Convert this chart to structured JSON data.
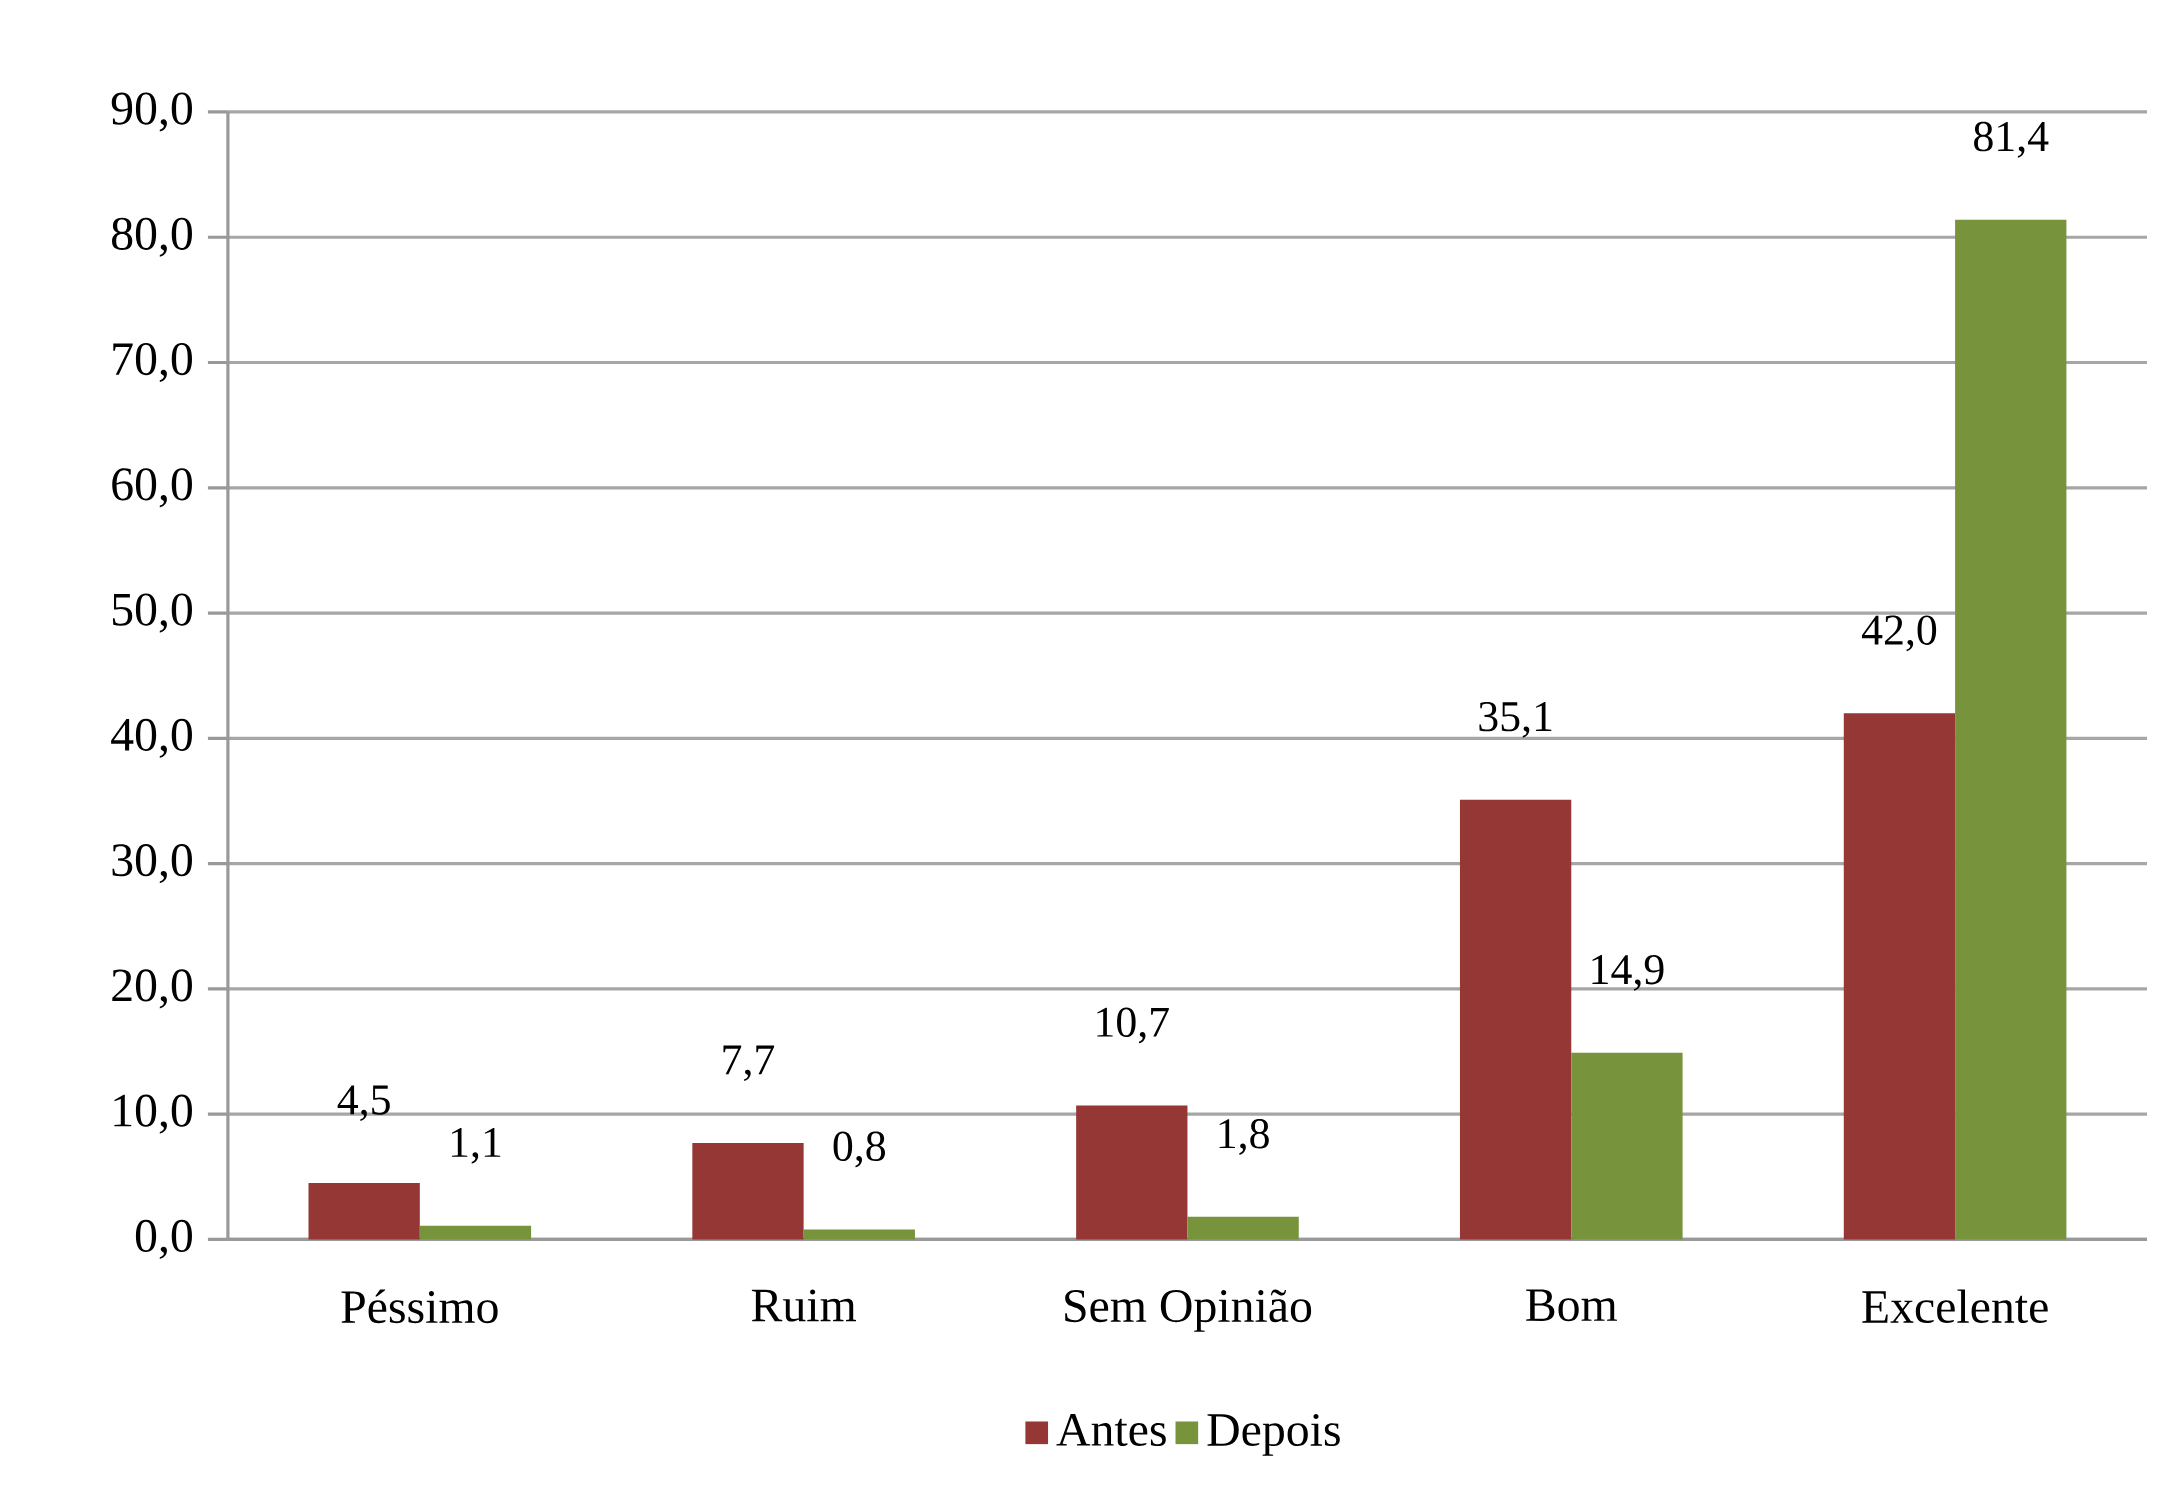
{
  "chart_data": {
    "type": "bar",
    "categories": [
      "Péssimo",
      "Ruim",
      "Sem Opinião",
      "Bom",
      "Excelente"
    ],
    "series": [
      {
        "name": "Antes",
        "color": "#953735",
        "values": [
          4.5,
          7.7,
          10.7,
          35.1,
          42.0
        ],
        "value_labels": [
          "4,5",
          "7,7",
          "10,7",
          "35,1",
          "42,0"
        ]
      },
      {
        "name": "Depois",
        "color": "#77933c",
        "values": [
          1.1,
          0.8,
          1.8,
          14.9,
          81.4
        ],
        "value_labels": [
          "1,1",
          "0,8",
          "1,8",
          "14,9",
          "81,4"
        ]
      }
    ],
    "ylim": [
      0,
      90
    ],
    "yticks": [
      {
        "value": 0,
        "label": "0,0"
      },
      {
        "value": 10,
        "label": "10,0"
      },
      {
        "value": 20,
        "label": "20,0"
      },
      {
        "value": 30,
        "label": "30,0"
      },
      {
        "value": 40,
        "label": "40,0"
      },
      {
        "value": 50,
        "label": "50,0"
      },
      {
        "value": 60,
        "label": "60,0"
      },
      {
        "value": 70,
        "label": "70,0"
      },
      {
        "value": 80,
        "label": "80,0"
      },
      {
        "value": 90,
        "label": "90,0"
      }
    ],
    "grid": "y",
    "legend": "bottom"
  }
}
